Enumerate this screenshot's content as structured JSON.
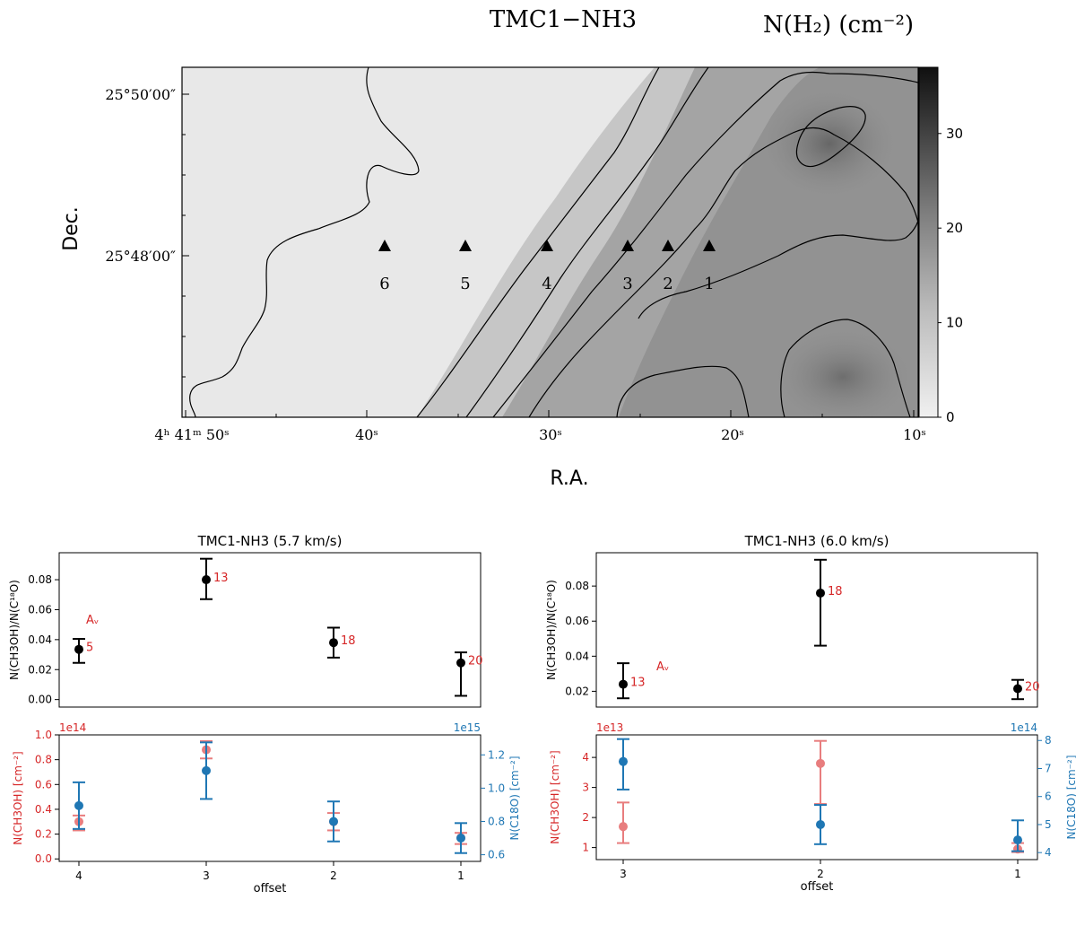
{
  "figure": {
    "map_title": "TMC1−NH3",
    "colorbar_title": "N(H₂)  (cm⁻²)"
  },
  "colors": {
    "red": "#d62728",
    "red_light": "#e87d7e",
    "blue": "#1f77b4",
    "black": "#000000"
  },
  "chart_data": [
    {
      "type": "heatmap",
      "title": "TMC1−NH3",
      "colorbar_label": "N(H₂)  (cm⁻²)",
      "xlabel": "R.A.",
      "ylabel": "Dec.",
      "x_ticks": [
        "4ʰ 41ᵐ 50ˢ",
        "40ˢ",
        "30ˢ",
        "20ˢ",
        "10ˢ"
      ],
      "y_ticks": [
        "25°50′00″",
        "25°48′00″"
      ],
      "colorbar_ticks": [
        "0",
        "10",
        "20",
        "30"
      ],
      "colorbar_range": [
        0,
        37
      ],
      "markers": [
        {
          "label": "6"
        },
        {
          "label": "5"
        },
        {
          "label": "4"
        },
        {
          "label": "3"
        },
        {
          "label": "2"
        },
        {
          "label": "1"
        }
      ]
    },
    {
      "type": "scatter",
      "title": "TMC1-NH3 (5.7 km/s)",
      "ylabel": "N(CH3OH)/N(C¹⁸O)",
      "ylim": [
        -0.005,
        0.098
      ],
      "yticks": [
        "0.00",
        "0.02",
        "0.04",
        "0.06",
        "0.08"
      ],
      "av_label": "Aᵥ",
      "categories": [
        "4",
        "3",
        "2",
        "1"
      ],
      "ratio": [
        0.0335,
        0.08,
        0.038,
        0.0245
      ],
      "ratio_err_low": [
        0.009,
        0.013,
        0.01,
        0.022
      ],
      "ratio_err_high": [
        0.007,
        0.014,
        0.01,
        0.007
      ],
      "av": [
        "5",
        "13",
        "18",
        "20"
      ],
      "bottom": {
        "xlabel": "offset",
        "left_ylabel": "N(CH3OH) [cm⁻²]",
        "right_ylabel": "N(C18O) [cm⁻²]",
        "left_scale": "1e14",
        "right_scale": "1e15",
        "left_ylim": [
          -0.02,
          1.0
        ],
        "right_ylim": [
          0.56,
          1.32
        ],
        "left_ticks": [
          "0.0",
          "0.2",
          "0.4",
          "0.6",
          "0.8",
          "1.0"
        ],
        "right_ticks": [
          "0.6",
          "0.8",
          "1.0",
          "1.2"
        ],
        "series": [
          {
            "name": "N(CH3OH)",
            "values": [
              0.3,
              0.88,
              0.3,
              0.17
            ],
            "err_low": [
              0.07,
              0.07,
              0.07,
              0.05
            ],
            "err_high": [
              0.05,
              0.07,
              0.07,
              0.04
            ]
          },
          {
            "name": "N(C18O)",
            "values": [
              0.895,
              1.105,
              0.8,
              0.7
            ],
            "err_low": [
              0.14,
              0.17,
              0.12,
              0.09
            ],
            "err_high": [
              0.14,
              0.17,
              0.12,
              0.09
            ]
          }
        ]
      }
    },
    {
      "type": "scatter",
      "title": "TMC1-NH3 (6.0 km/s)",
      "ylabel": "N(CH3OH)/N(C¹⁸O)",
      "ylim": [
        0.011,
        0.099
      ],
      "yticks": [
        "0.02",
        "0.04",
        "0.06",
        "0.08"
      ],
      "av_label": "Aᵥ",
      "categories": [
        "3",
        "2",
        "1"
      ],
      "ratio": [
        0.024,
        0.076,
        0.0215
      ],
      "ratio_err_low": [
        0.008,
        0.03,
        0.006
      ],
      "ratio_err_high": [
        0.012,
        0.019,
        0.005
      ],
      "av": [
        "13",
        "18",
        "20"
      ],
      "bottom": {
        "xlabel": "offset",
        "left_ylabel": "N(CH3OH) [cm⁻²]",
        "right_ylabel": "N(C18O) [cm⁻²]",
        "left_scale": "1e13",
        "right_scale": "1e14",
        "left_ylim": [
          0.6,
          4.75
        ],
        "right_ylim": [
          3.75,
          8.2
        ],
        "left_ticks": [
          "1",
          "2",
          "3",
          "4"
        ],
        "right_ticks": [
          "4",
          "5",
          "6",
          "7",
          "8"
        ],
        "series": [
          {
            "name": "N(CH3OH)",
            "values": [
              1.7,
              3.8,
              0.95
            ],
            "err_low": [
              0.55,
              1.35,
              0.1
            ],
            "err_high": [
              0.8,
              0.75,
              0.2
            ]
          },
          {
            "name": "N(C18O)",
            "values": [
              7.25,
              5.0,
              4.45
            ],
            "err_low": [
              1.0,
              0.7,
              0.4
            ],
            "err_high": [
              0.8,
              0.7,
              0.7
            ]
          }
        ]
      }
    }
  ]
}
